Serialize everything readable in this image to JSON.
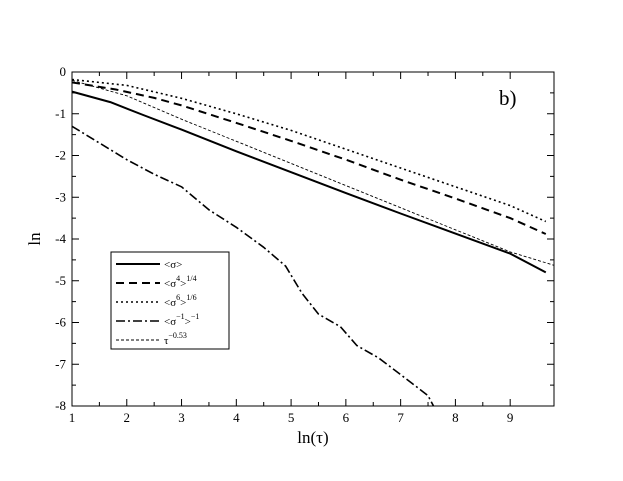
{
  "chart_data": {
    "type": "line",
    "panel_label": "b)",
    "xlabel": "ln(τ)",
    "ylabel": "ln",
    "xlim": [
      1,
      9.8
    ],
    "ylim": [
      -8,
      0
    ],
    "x_ticks": [
      "1",
      "2",
      "3",
      "4",
      "5",
      "6",
      "7",
      "8",
      "9"
    ],
    "y_ticks": [
      "0",
      "-1",
      "-2",
      "-3",
      "-4",
      "-5",
      "-6",
      "-7",
      "-8"
    ],
    "legend_position": "left",
    "series": [
      {
        "legend": {
          "base": "<σ>",
          "sup1": "",
          "tail": "",
          "sup2": ""
        },
        "dash": "solid",
        "stroke_width": 2,
        "points": [
          [
            1.0,
            -0.47
          ],
          [
            1.7,
            -0.72
          ],
          [
            2.3,
            -1.03
          ],
          [
            3.0,
            -1.38
          ],
          [
            4.0,
            -1.9
          ],
          [
            5.0,
            -2.4
          ],
          [
            6.0,
            -2.9
          ],
          [
            7.0,
            -3.39
          ],
          [
            8.0,
            -3.87
          ],
          [
            9.0,
            -4.35
          ],
          [
            9.65,
            -4.8
          ]
        ]
      },
      {
        "legend": {
          "base": "<σ",
          "sup1": "4",
          "tail": ">",
          "sup2": "1/4"
        },
        "dash": "8,5",
        "stroke_width": 2,
        "points": [
          [
            1.0,
            -0.25
          ],
          [
            1.8,
            -0.42
          ],
          [
            2.5,
            -0.62
          ],
          [
            3.0,
            -0.8
          ],
          [
            4.0,
            -1.22
          ],
          [
            5.0,
            -1.65
          ],
          [
            6.0,
            -2.1
          ],
          [
            7.0,
            -2.58
          ],
          [
            8.0,
            -3.03
          ],
          [
            9.0,
            -3.5
          ],
          [
            9.65,
            -3.88
          ]
        ]
      },
      {
        "legend": {
          "base": "<σ",
          "sup1": "6",
          "tail": ">",
          "sup2": "1/6"
        },
        "dash": "2,3",
        "stroke_width": 1.6,
        "points": [
          [
            1.0,
            -0.18
          ],
          [
            2.0,
            -0.32
          ],
          [
            3.0,
            -0.63
          ],
          [
            4.0,
            -1.0
          ],
          [
            5.0,
            -1.4
          ],
          [
            6.0,
            -1.85
          ],
          [
            7.0,
            -2.3
          ],
          [
            8.0,
            -2.75
          ],
          [
            9.0,
            -3.2
          ],
          [
            9.65,
            -3.58
          ]
        ]
      },
      {
        "legend": {
          "base": "<σ",
          "sup1": "−1",
          "tail": ">",
          "sup2": "−1"
        },
        "dash": "9,3,2,3",
        "stroke_width": 1.6,
        "points": [
          [
            1.0,
            -1.3
          ],
          [
            1.5,
            -1.7
          ],
          [
            2.0,
            -2.1
          ],
          [
            2.5,
            -2.45
          ],
          [
            3.0,
            -2.75
          ],
          [
            3.5,
            -3.3
          ],
          [
            4.0,
            -3.72
          ],
          [
            4.5,
            -4.2
          ],
          [
            4.9,
            -4.65
          ],
          [
            5.2,
            -5.3
          ],
          [
            5.5,
            -5.8
          ],
          [
            5.9,
            -6.1
          ],
          [
            6.2,
            -6.55
          ],
          [
            6.6,
            -6.85
          ],
          [
            6.9,
            -7.15
          ],
          [
            7.2,
            -7.45
          ],
          [
            7.5,
            -7.75
          ],
          [
            7.6,
            -8.0
          ]
        ]
      },
      {
        "legend": {
          "base": "τ",
          "sup1": "−0.53",
          "tail": "",
          "sup2": ""
        },
        "dash": "3,2",
        "stroke_width": 0.9,
        "points": [
          [
            1.0,
            -0.2
          ],
          [
            2.0,
            -0.57
          ],
          [
            3.0,
            -1.13
          ],
          [
            4.0,
            -1.66
          ],
          [
            5.0,
            -2.19
          ],
          [
            6.0,
            -2.72
          ],
          [
            7.0,
            -3.25
          ],
          [
            8.0,
            -3.78
          ],
          [
            9.0,
            -4.31
          ],
          [
            9.8,
            -4.63
          ]
        ]
      }
    ]
  }
}
